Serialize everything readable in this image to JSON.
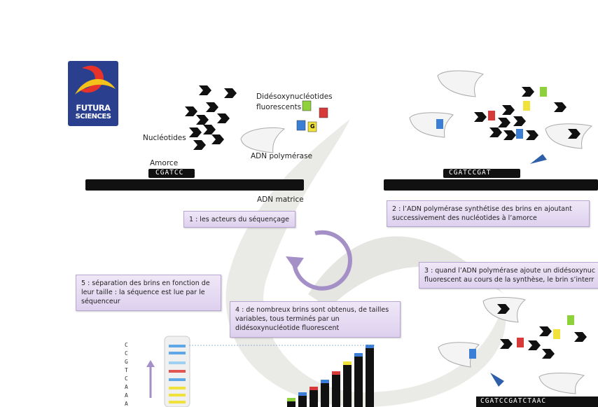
{
  "logo": {
    "line1": "FUTURA",
    "line2": "SCIENCES"
  },
  "labels": {
    "didesoxy": "Didésoxynucléotides",
    "fluorescents": "fluorescents",
    "nucleotides": "Nucléotides",
    "adn_polymerase": "ADN polymérase",
    "amorce": "Amorce",
    "adn_matrice": "ADN matrice",
    "base_g": "G"
  },
  "sequences": {
    "primer": "CGATCC",
    "primer_step2": "CGATCCGAT",
    "primer_step3": "CGATCCGATCTAAC"
  },
  "steps": {
    "step1": "1 : les acteurs du séquençage",
    "step2_line1": "2 : l’ADN polymérase synthétise des brins en ajoutant",
    "step2_line2": "successivement des nucléotides à l’amorce",
    "step3_line1": "3 : quand l’ADN polymérase ajoute un didésoxynuc",
    "step3_line2": "fluorescent au cours de la synthèse, le brin s’interr",
    "step4_line1": "4 : de nombreux brins sont obtenus, de tailles",
    "step4_line2": "variables, tous terminés par un",
    "step4_line3": "didésoxynucléotide fluorescent",
    "step5_line1": "5 : séparation des brins en fonction de",
    "step5_line2": "leur taille : la séquence est lue par le",
    "step5_line3": "séquenceur"
  },
  "gel_letters": [
    "C",
    "C",
    "G",
    "T",
    "C",
    "A",
    "A",
    "A"
  ],
  "colors": {
    "blue_ddntp": "#3a7fd5",
    "red_ddntp": "#d83a3a",
    "yellow_ddntp": "#f0e23a",
    "green_ddntp": "#8fd13a",
    "step_box": "#e6dcf2",
    "cycle_arrow": "#a48fc7"
  }
}
